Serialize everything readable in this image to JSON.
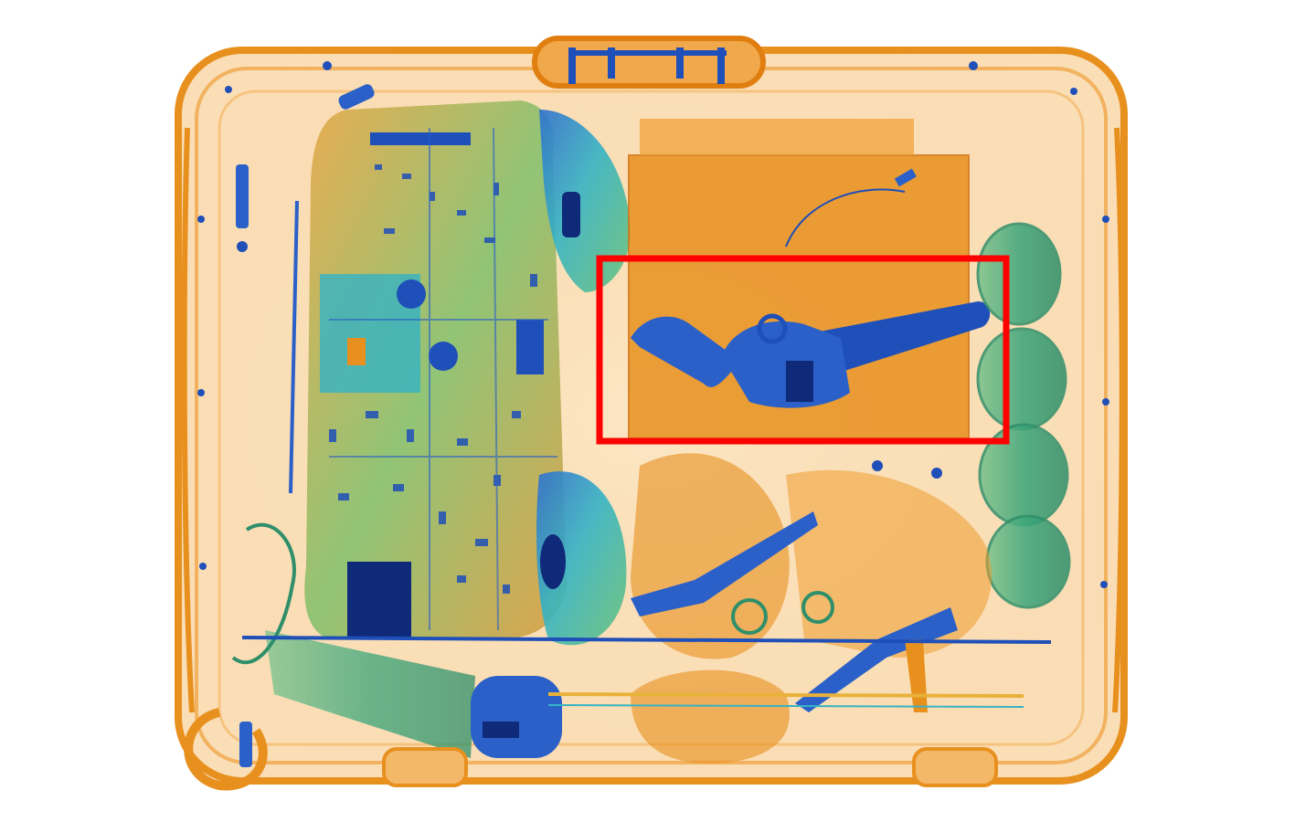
{
  "image": {
    "subject": "x-ray-scan-of-suitcase",
    "palette": {
      "background": "#ffffff",
      "organic_orange": "#e8901e",
      "light_orange": "#f6c27a",
      "pale_orange": "#fbe3bd",
      "dense_blue": "#1f4fb8",
      "dark_blue": "#102a7a",
      "mixed_green": "#3aa57a",
      "teal": "#35b3c4",
      "highlight_red": "#ff0000"
    }
  },
  "detection": {
    "label": "",
    "box_color": "#ff0000"
  }
}
